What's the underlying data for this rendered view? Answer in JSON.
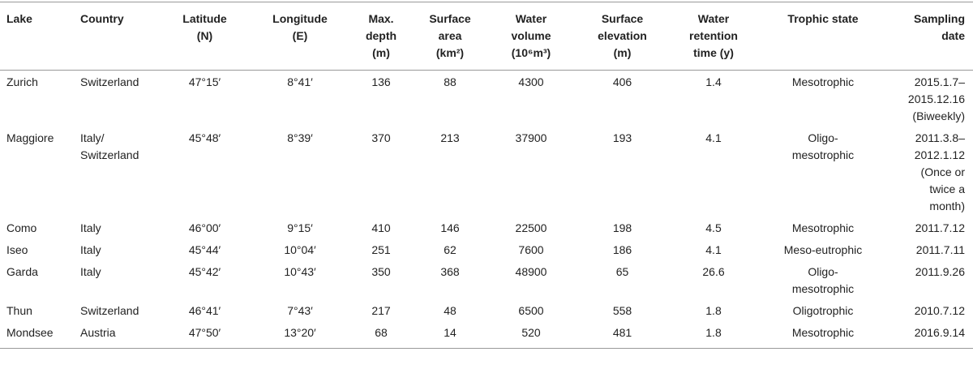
{
  "table": {
    "header": [
      [
        "Lake"
      ],
      [
        "Country"
      ],
      [
        "Latitude",
        "(N)"
      ],
      [
        "Longitude",
        "(E)"
      ],
      [
        "Max.",
        "depth",
        "(m)"
      ],
      [
        "Surface",
        "area",
        "(km²)"
      ],
      [
        "Water",
        "volume",
        "(10⁶m³)"
      ],
      [
        "Surface",
        "elevation",
        "(m)"
      ],
      [
        "Water",
        "retention",
        "time (y)"
      ],
      [
        "Trophic state"
      ],
      [
        "Sampling",
        "date"
      ]
    ],
    "rows": [
      [
        "Zurich",
        [
          "Switzerland"
        ],
        "47°15′",
        "8°41′",
        136,
        88,
        4300,
        406,
        1.4,
        [
          "Mesotrophic"
        ],
        [
          "2015.1.7–",
          "2015.12.16",
          "(Biweekly)"
        ]
      ],
      [
        "Maggiore",
        [
          "Italy/",
          "Switzerland"
        ],
        "45°48′",
        "8°39′",
        370,
        213,
        37900,
        193,
        4.1,
        [
          "Oligo-",
          "mesotrophic"
        ],
        [
          "2011.3.8–",
          "2012.1.12",
          "(Once or",
          "twice a",
          "month)"
        ]
      ],
      [
        "Como",
        [
          "Italy"
        ],
        "46°00′",
        "9°15′",
        410,
        146,
        22500,
        198,
        4.5,
        [
          "Mesotrophic"
        ],
        [
          "2011.7.12"
        ]
      ],
      [
        "Iseo",
        [
          "Italy"
        ],
        "45°44′",
        "10°04′",
        251,
        62,
        7600,
        186,
        4.1,
        [
          "Meso-eutrophic"
        ],
        [
          "2011.7.11"
        ]
      ],
      [
        "Garda",
        [
          "Italy"
        ],
        "45°42′",
        "10°43′",
        350,
        368,
        48900,
        65,
        26.6,
        [
          "Oligo-",
          "mesotrophic"
        ],
        [
          "2011.9.26"
        ]
      ],
      [
        "Thun",
        [
          "Switzerland"
        ],
        "46°41′",
        "7°43′",
        217,
        48,
        6500,
        558,
        1.8,
        [
          "Oligotrophic"
        ],
        [
          "2010.7.12"
        ]
      ],
      [
        "Mondsee",
        [
          "Austria"
        ],
        "47°50′",
        "13°20′",
        68,
        14,
        520,
        481,
        1.8,
        [
          "Mesotrophic"
        ],
        [
          "2016.9.14"
        ]
      ]
    ]
  }
}
